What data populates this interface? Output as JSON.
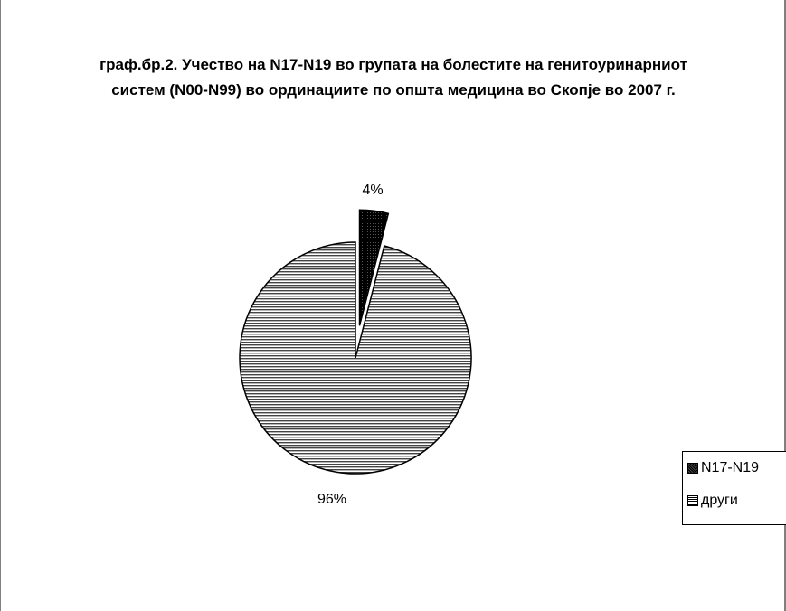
{
  "chart_data": {
    "type": "pie",
    "title": "граф.бр.2.  Учество на N17-N19 во групата на болестите на генитоуринарниот систем (N00-N99) во ординациите по општа медицина во Скопје во 2007 г.",
    "categories": [
      "N17-N19",
      "други"
    ],
    "values": [
      4,
      96
    ],
    "data_labels": [
      "4%",
      "96%"
    ],
    "legend_position": "right",
    "exploded_slice": "N17-N19",
    "colors": {
      "N17-N19": "#111111",
      "други": "#9a9a9a"
    }
  }
}
